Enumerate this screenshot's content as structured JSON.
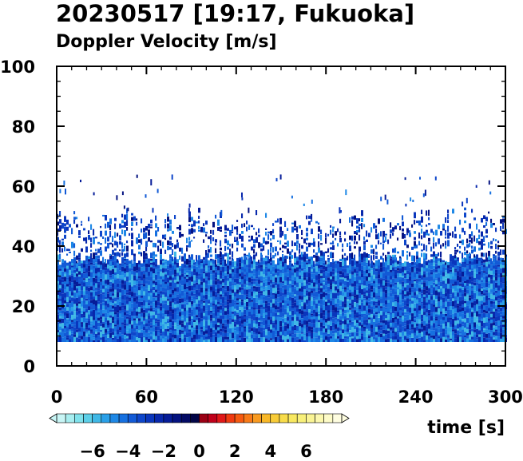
{
  "chart_data": {
    "type": "heatmap",
    "title": "20230517 [19:17, Fukuoka]",
    "subtitle": "Doppler Velocity [m/s]",
    "xlabel": "time [s]",
    "ylabel": "",
    "xlim": [
      0,
      300
    ],
    "ylim": [
      0,
      100
    ],
    "x_ticks": [
      0,
      60,
      120,
      180,
      240,
      300
    ],
    "y_ticks": [
      0,
      20,
      40,
      60,
      80,
      100
    ],
    "x_tick_labels": [
      "0",
      "60",
      "120",
      "180",
      "240",
      "300"
    ],
    "y_tick_labels": [
      "0",
      "20",
      "40",
      "60",
      "80",
      "100"
    ],
    "data_region": {
      "time_range": [
        0,
        300
      ],
      "height_bottom": 8,
      "dense_top": 37,
      "scattered_top": 52,
      "max_echo_height": 64
    },
    "colorbar": {
      "vmin": -8,
      "vmax": 8,
      "step": 0.5,
      "extend": "both",
      "tick_values": [
        -6,
        -4,
        -2,
        0,
        2,
        4,
        6
      ],
      "tick_labels": [
        "−6",
        "−4",
        "−2",
        "0",
        "2",
        "4",
        "6"
      ],
      "colors": [
        "#c8f5f5",
        "#a8eef0",
        "#80e2ec",
        "#5ccfe8",
        "#3fb8e6",
        "#2aa0e8",
        "#1e88e6",
        "#1670e0",
        "#125ad6",
        "#0e46ca",
        "#0a36bc",
        "#0828ac",
        "#061c98",
        "#041280",
        "#030a64",
        "#020546",
        "#9a0014",
        "#c0001a",
        "#e01818",
        "#f03a10",
        "#f65a10",
        "#f87a18",
        "#f89a20",
        "#f8b828",
        "#f8cc38",
        "#f8dc4a",
        "#f8e860",
        "#f8f07a",
        "#faf494",
        "#fcf8ae",
        "#fdfbc8",
        "#fefde0"
      ]
    }
  }
}
